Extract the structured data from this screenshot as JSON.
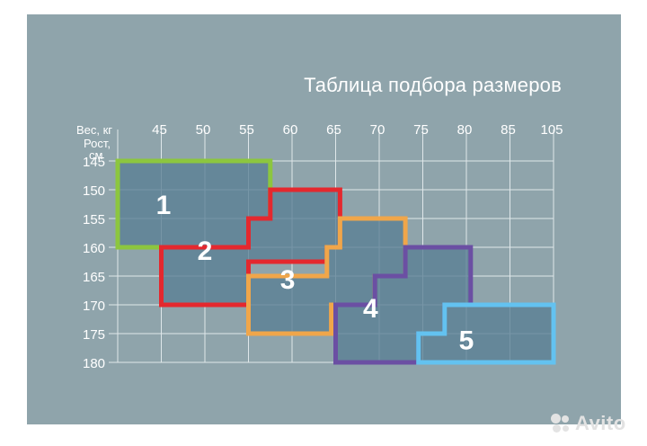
{
  "chart_data": {
    "type": "table",
    "title": "Таблица подбора размеров",
    "x_axis_label": "Вес, кг",
    "y_axis_label": [
      "Рост,",
      "см"
    ],
    "weights": [
      "45",
      "50",
      "55",
      "60",
      "65",
      "70",
      "75",
      "80",
      "85",
      "105"
    ],
    "heights": [
      "145",
      "150",
      "155",
      "160",
      "165",
      "170",
      "175",
      "180"
    ],
    "sizes": [
      {
        "size": "1",
        "color": "#8cc63f",
        "weight_range": [
          "40",
          "55"
        ],
        "height_range": [
          "145",
          "160"
        ]
      },
      {
        "size": "2",
        "color": "#e4282e",
        "weight_range": [
          "45",
          "62.5"
        ],
        "height_range": [
          "150",
          "170"
        ]
      },
      {
        "size": "3",
        "color": "#f0a64a",
        "weight_range": [
          "55",
          "72.5"
        ],
        "height_range": [
          "155",
          "175"
        ]
      },
      {
        "size": "4",
        "color": "#6b4fa3",
        "weight_range": [
          "65",
          "82.5"
        ],
        "height_range": [
          "160",
          "180"
        ]
      },
      {
        "size": "5",
        "color": "#63c2f0",
        "weight_range": [
          "75",
          "105"
        ],
        "height_range": [
          "170",
          "180"
        ]
      }
    ],
    "grid": true
  },
  "watermark": {
    "text": "Avito",
    "icon": "avito-dots-icon"
  }
}
